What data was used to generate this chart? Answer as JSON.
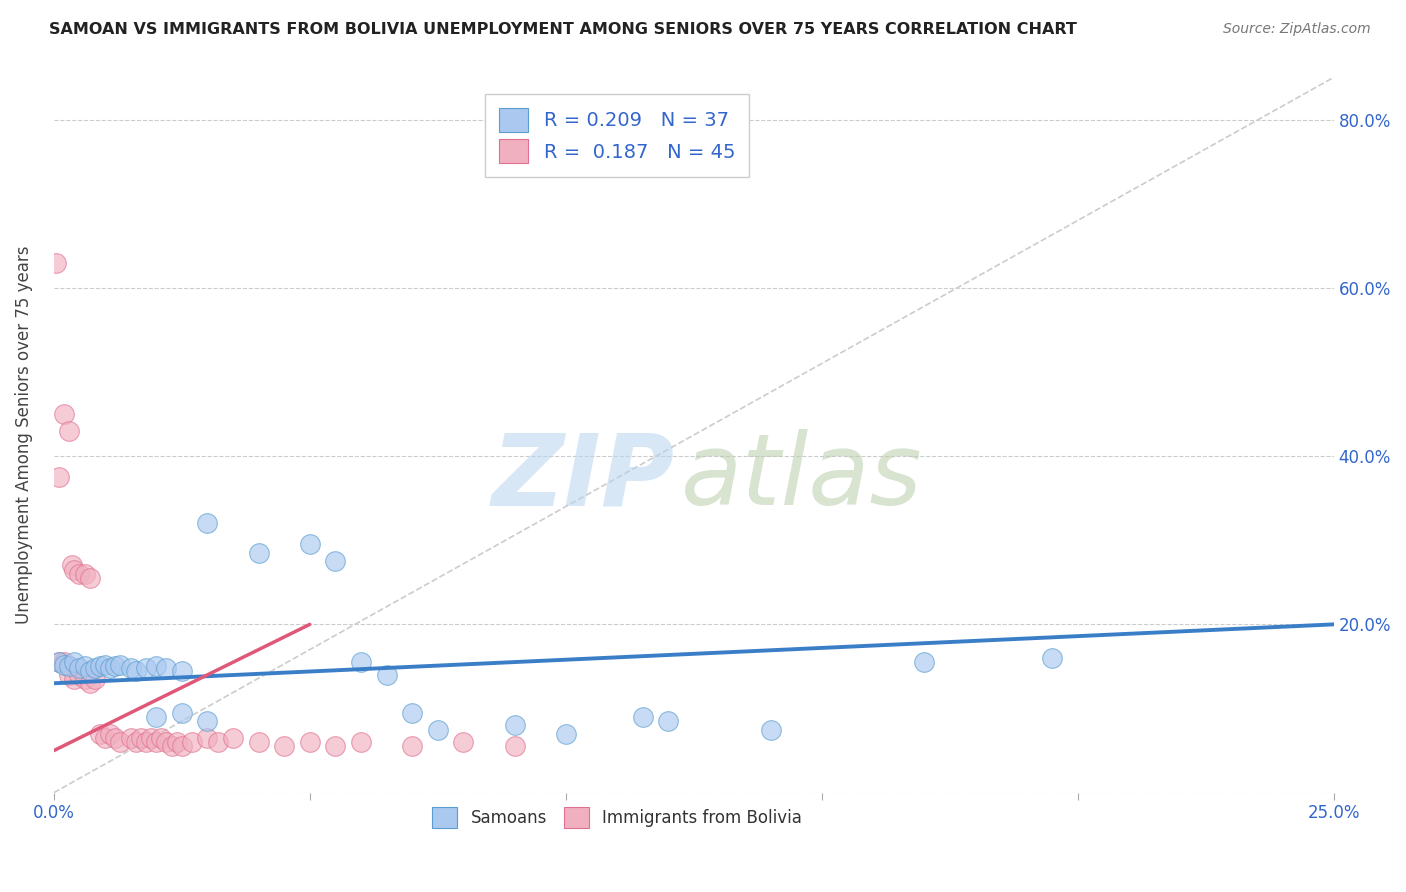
{
  "title": "SAMOAN VS IMMIGRANTS FROM BOLIVIA UNEMPLOYMENT AMONG SENIORS OVER 75 YEARS CORRELATION CHART",
  "source": "Source: ZipAtlas.com",
  "ylabel": "Unemployment Among Seniors over 75 years",
  "xlim": [
    0.0,
    0.25
  ],
  "ylim": [
    0.0,
    0.85
  ],
  "legend_entries": [
    {
      "label_color": "#a8c8f0",
      "R": "0.209",
      "N": "37"
    },
    {
      "label_color": "#f0b0c0",
      "R": "0.187",
      "N": "45"
    }
  ],
  "legend_labels": [
    "Samoans",
    "Immigrants from Bolivia"
  ],
  "blue_scatter_face": "#aac8f0",
  "blue_scatter_edge": "#5a9ed0",
  "pink_scatter_face": "#f0b0c0",
  "pink_scatter_edge": "#e07090",
  "blue_line_color": "#3a7ec8",
  "pink_line_color": "#e05878",
  "diagonal_color": "#cccccc",
  "samoan_points": [
    [
      0.001,
      0.155
    ],
    [
      0.002,
      0.152
    ],
    [
      0.003,
      0.15
    ],
    [
      0.004,
      0.155
    ],
    [
      0.005,
      0.148
    ],
    [
      0.006,
      0.15
    ],
    [
      0.007,
      0.145
    ],
    [
      0.008,
      0.148
    ],
    [
      0.009,
      0.15
    ],
    [
      0.01,
      0.152
    ],
    [
      0.011,
      0.148
    ],
    [
      0.012,
      0.15
    ],
    [
      0.013,
      0.152
    ],
    [
      0.015,
      0.148
    ],
    [
      0.016,
      0.145
    ],
    [
      0.018,
      0.148
    ],
    [
      0.02,
      0.15
    ],
    [
      0.022,
      0.148
    ],
    [
      0.025,
      0.145
    ],
    [
      0.03,
      0.32
    ],
    [
      0.04,
      0.285
    ],
    [
      0.05,
      0.295
    ],
    [
      0.055,
      0.275
    ],
    [
      0.06,
      0.155
    ],
    [
      0.065,
      0.14
    ],
    [
      0.07,
      0.095
    ],
    [
      0.075,
      0.075
    ],
    [
      0.09,
      0.08
    ],
    [
      0.1,
      0.07
    ],
    [
      0.115,
      0.09
    ],
    [
      0.12,
      0.085
    ],
    [
      0.14,
      0.075
    ],
    [
      0.17,
      0.155
    ],
    [
      0.195,
      0.16
    ],
    [
      0.02,
      0.09
    ],
    [
      0.025,
      0.095
    ],
    [
      0.03,
      0.085
    ]
  ],
  "bolivia_points": [
    [
      0.0005,
      0.63
    ],
    [
      0.001,
      0.375
    ],
    [
      0.002,
      0.45
    ],
    [
      0.003,
      0.43
    ],
    [
      0.0035,
      0.27
    ],
    [
      0.004,
      0.265
    ],
    [
      0.005,
      0.26
    ],
    [
      0.006,
      0.26
    ],
    [
      0.007,
      0.255
    ],
    [
      0.001,
      0.155
    ],
    [
      0.002,
      0.155
    ],
    [
      0.003,
      0.14
    ],
    [
      0.004,
      0.135
    ],
    [
      0.005,
      0.14
    ],
    [
      0.006,
      0.135
    ],
    [
      0.007,
      0.13
    ],
    [
      0.008,
      0.135
    ],
    [
      0.009,
      0.07
    ],
    [
      0.01,
      0.065
    ],
    [
      0.011,
      0.07
    ],
    [
      0.012,
      0.065
    ],
    [
      0.013,
      0.06
    ],
    [
      0.015,
      0.065
    ],
    [
      0.016,
      0.06
    ],
    [
      0.017,
      0.065
    ],
    [
      0.018,
      0.06
    ],
    [
      0.019,
      0.065
    ],
    [
      0.02,
      0.06
    ],
    [
      0.021,
      0.065
    ],
    [
      0.022,
      0.06
    ],
    [
      0.023,
      0.055
    ],
    [
      0.024,
      0.06
    ],
    [
      0.025,
      0.055
    ],
    [
      0.027,
      0.06
    ],
    [
      0.03,
      0.065
    ],
    [
      0.032,
      0.06
    ],
    [
      0.035,
      0.065
    ],
    [
      0.04,
      0.06
    ],
    [
      0.045,
      0.055
    ],
    [
      0.05,
      0.06
    ],
    [
      0.055,
      0.055
    ],
    [
      0.06,
      0.06
    ],
    [
      0.07,
      0.055
    ],
    [
      0.08,
      0.06
    ],
    [
      0.09,
      0.055
    ]
  ],
  "samoan_line": {
    "x0": 0.0,
    "y0": 0.13,
    "x1": 0.25,
    "y1": 0.2
  },
  "bolivia_line": {
    "x0": 0.0,
    "y0": 0.05,
    "x1": 0.05,
    "y1": 0.2
  }
}
